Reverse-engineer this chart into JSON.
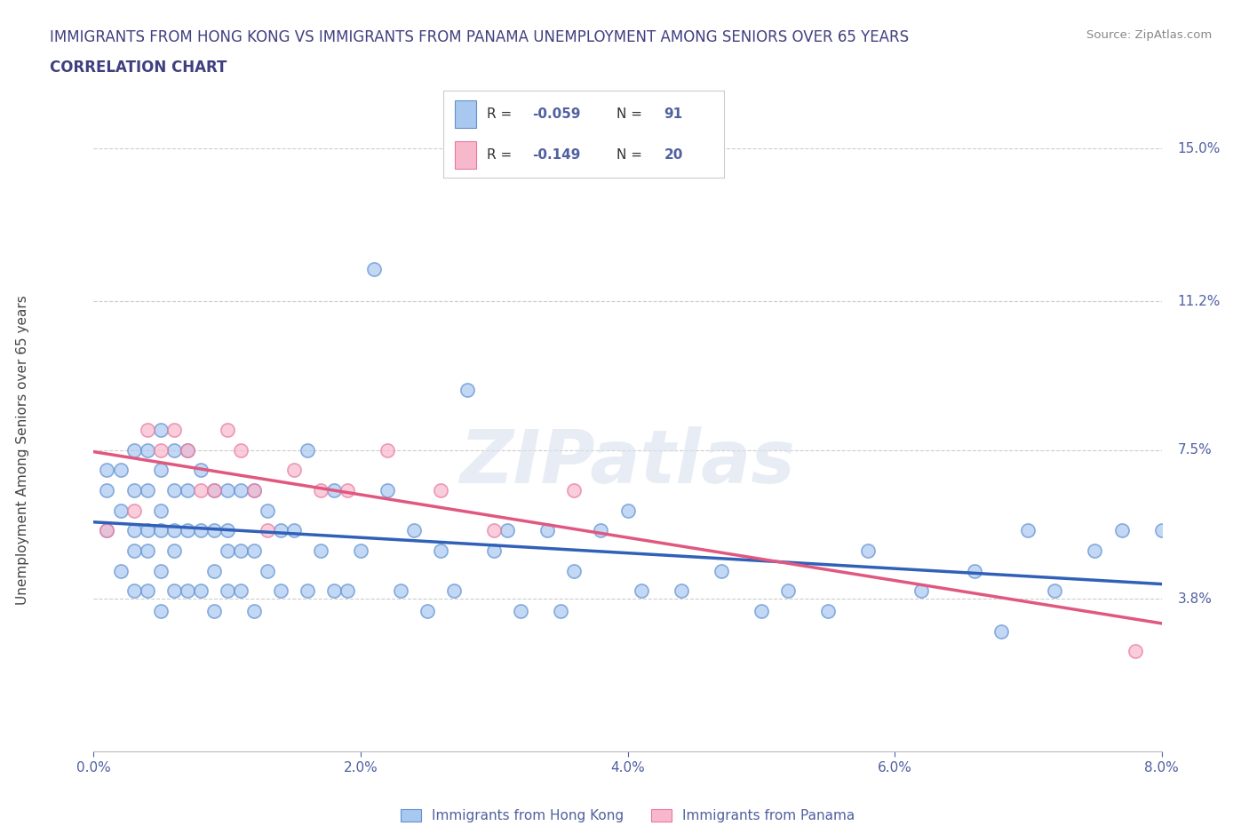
{
  "title_line1": "IMMIGRANTS FROM HONG KONG VS IMMIGRANTS FROM PANAMA UNEMPLOYMENT AMONG SENIORS OVER 65 YEARS",
  "title_line2": "CORRELATION CHART",
  "source_text": "Source: ZipAtlas.com",
  "ylabel": "Unemployment Among Seniors over 65 years",
  "xmin": 0.0,
  "xmax": 0.08,
  "ymin": 0.0,
  "ymax": 0.15,
  "yticks": [
    0.038,
    0.075,
    0.112,
    0.15
  ],
  "ytick_labels": [
    "3.8%",
    "7.5%",
    "11.2%",
    "15.0%"
  ],
  "xticks": [
    0.0,
    0.02,
    0.04,
    0.06,
    0.08
  ],
  "xtick_labels": [
    "0.0%",
    "2.0%",
    "4.0%",
    "6.0%",
    "8.0%"
  ],
  "hk_color": "#a8c8f0",
  "panama_color": "#f8b8cc",
  "hk_edge_color": "#6090d0",
  "panama_edge_color": "#e878a0",
  "hk_line_color": "#3060b8",
  "panama_line_color": "#e05880",
  "hk_R": -0.059,
  "hk_N": 91,
  "panama_R": -0.149,
  "panama_N": 20,
  "watermark": "ZIPatlas",
  "legend_label_hk": "Immigrants from Hong Kong",
  "legend_label_panama": "Immigrants from Panama",
  "title_color": "#404080",
  "axis_color": "#5060a0",
  "grid_color": "#cccccc",
  "hk_scatter_x": [
    0.001,
    0.001,
    0.001,
    0.002,
    0.002,
    0.002,
    0.003,
    0.003,
    0.003,
    0.003,
    0.003,
    0.004,
    0.004,
    0.004,
    0.004,
    0.004,
    0.005,
    0.005,
    0.005,
    0.005,
    0.005,
    0.005,
    0.006,
    0.006,
    0.006,
    0.006,
    0.006,
    0.007,
    0.007,
    0.007,
    0.007,
    0.008,
    0.008,
    0.008,
    0.009,
    0.009,
    0.009,
    0.009,
    0.01,
    0.01,
    0.01,
    0.01,
    0.011,
    0.011,
    0.011,
    0.012,
    0.012,
    0.012,
    0.013,
    0.013,
    0.014,
    0.014,
    0.015,
    0.016,
    0.016,
    0.017,
    0.018,
    0.018,
    0.019,
    0.02,
    0.021,
    0.022,
    0.023,
    0.024,
    0.025,
    0.026,
    0.027,
    0.028,
    0.03,
    0.031,
    0.032,
    0.034,
    0.035,
    0.036,
    0.038,
    0.04,
    0.041,
    0.044,
    0.047,
    0.05,
    0.052,
    0.055,
    0.058,
    0.062,
    0.066,
    0.068,
    0.07,
    0.072,
    0.075,
    0.077,
    0.08
  ],
  "hk_scatter_y": [
    0.055,
    0.065,
    0.07,
    0.045,
    0.06,
    0.07,
    0.04,
    0.05,
    0.055,
    0.065,
    0.075,
    0.04,
    0.05,
    0.055,
    0.065,
    0.075,
    0.035,
    0.045,
    0.055,
    0.06,
    0.07,
    0.08,
    0.04,
    0.05,
    0.055,
    0.065,
    0.075,
    0.04,
    0.055,
    0.065,
    0.075,
    0.04,
    0.055,
    0.07,
    0.035,
    0.045,
    0.055,
    0.065,
    0.04,
    0.05,
    0.055,
    0.065,
    0.04,
    0.05,
    0.065,
    0.035,
    0.05,
    0.065,
    0.045,
    0.06,
    0.04,
    0.055,
    0.055,
    0.04,
    0.075,
    0.05,
    0.04,
    0.065,
    0.04,
    0.05,
    0.12,
    0.065,
    0.04,
    0.055,
    0.035,
    0.05,
    0.04,
    0.09,
    0.05,
    0.055,
    0.035,
    0.055,
    0.035,
    0.045,
    0.055,
    0.06,
    0.04,
    0.04,
    0.045,
    0.035,
    0.04,
    0.035,
    0.05,
    0.04,
    0.045,
    0.03,
    0.055,
    0.04,
    0.05,
    0.055,
    0.055
  ],
  "panama_scatter_x": [
    0.001,
    0.003,
    0.004,
    0.005,
    0.006,
    0.007,
    0.008,
    0.009,
    0.01,
    0.011,
    0.012,
    0.013,
    0.015,
    0.017,
    0.019,
    0.022,
    0.026,
    0.03,
    0.036,
    0.078
  ],
  "panama_scatter_y": [
    0.055,
    0.06,
    0.08,
    0.075,
    0.08,
    0.075,
    0.065,
    0.065,
    0.08,
    0.075,
    0.065,
    0.055,
    0.07,
    0.065,
    0.065,
    0.075,
    0.065,
    0.055,
    0.065,
    0.025
  ]
}
